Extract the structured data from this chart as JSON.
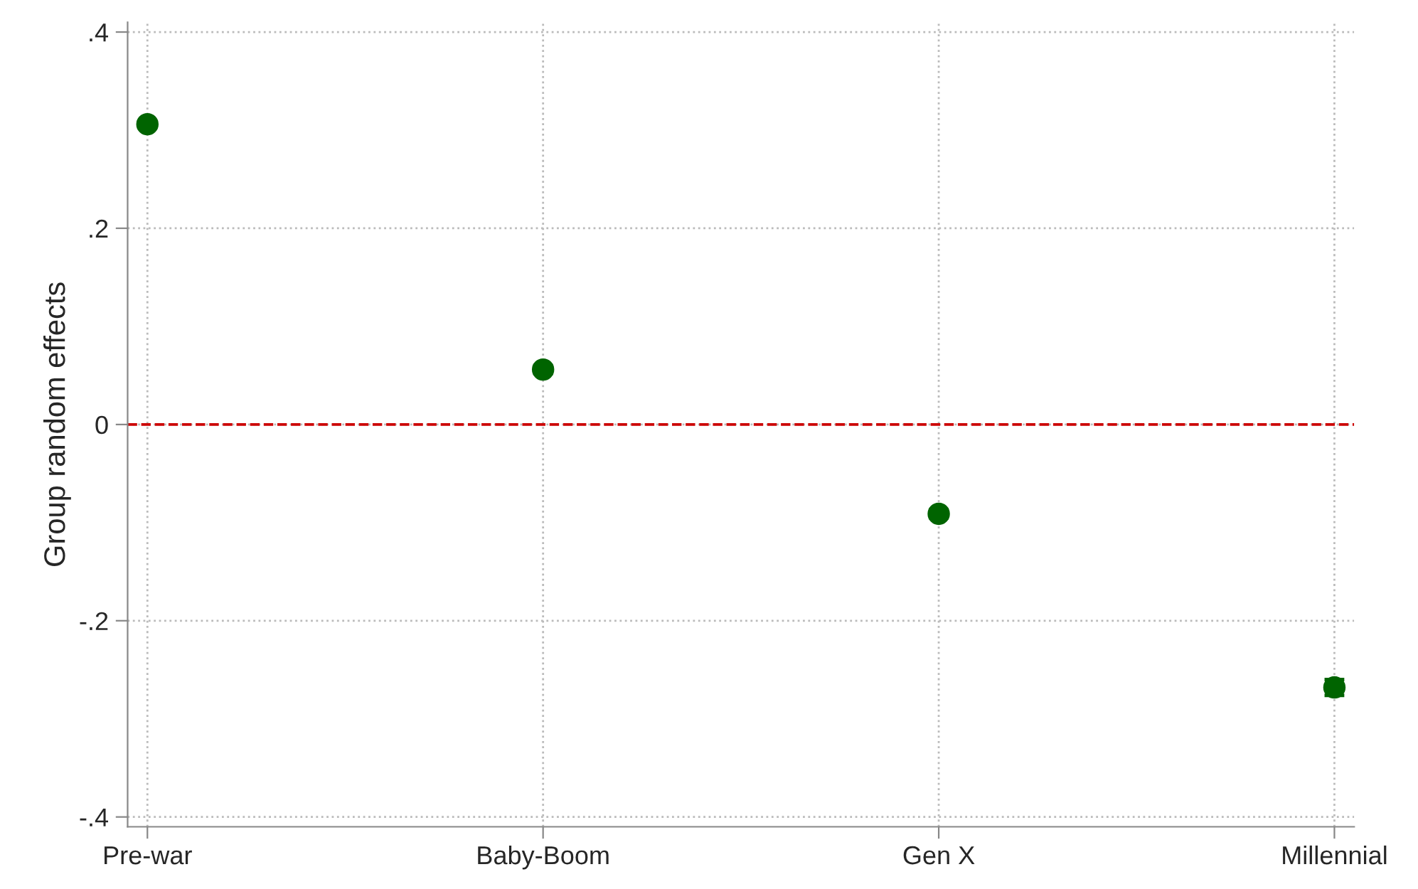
{
  "chart_data": {
    "type": "scatter",
    "ylabel": "Group random effects",
    "categories": [
      "Pre-war",
      "Baby-Boom",
      "Gen X",
      "Millennial"
    ],
    "values": [
      0.306,
      0.056,
      -0.091,
      -0.268
    ],
    "errors": [
      null,
      0.004,
      0.004,
      0.008
    ],
    "color": "#006400",
    "marker": "circle",
    "ylim": [
      -0.41,
      0.41
    ],
    "yticks": [
      {
        "value": -0.4,
        "label": "-.4"
      },
      {
        "value": -0.2,
        "label": "-.2"
      },
      0,
      {
        "value": 0.2,
        "label": ".2"
      },
      {
        "value": 0.4,
        "label": ".4"
      }
    ],
    "grid": true,
    "legend": false,
    "ref_lines": [
      {
        "axis": "y",
        "value": 0,
        "label": null,
        "color": "#cc0000",
        "line_style": "dashed"
      }
    ]
  }
}
